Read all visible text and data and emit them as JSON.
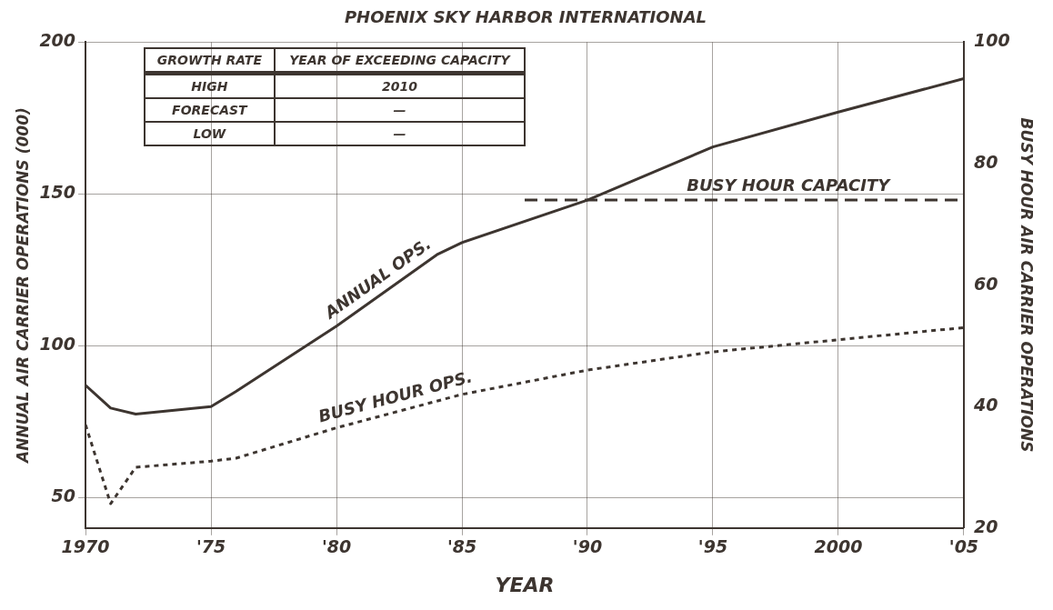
{
  "chart_data": {
    "type": "line",
    "title": "PHOENIX SKY HARBOR INTERNATIONAL",
    "xlabel": "YEAR",
    "ylabel": "ANNUAL AIR CARRIER OPERATIONS (000)",
    "y2label": "BUSY HOUR AIR CARRIER OPERATIONS",
    "xlim": [
      1970,
      2005
    ],
    "xticks": [
      1970,
      {
        "value": 1975,
        "label": "'75"
      },
      {
        "value": 1980,
        "label": "'80"
      },
      {
        "value": 1985,
        "label": "'85"
      },
      {
        "value": 1990,
        "label": "'90"
      },
      {
        "value": 1995,
        "label": "'95"
      },
      2000,
      {
        "value": 2005,
        "label": "'05"
      }
    ],
    "ylim": [
      40,
      200
    ],
    "yticks": [
      50,
      100,
      150,
      200
    ],
    "y2lim": [
      20,
      100
    ],
    "y2ticks": [
      20,
      40,
      60,
      80,
      100
    ],
    "grid": true,
    "legend": false,
    "marker": "none",
    "series": [
      {
        "name": "ANNUAL OPS.",
        "color": "#3d3530",
        "line_style": "solid",
        "x": [
          1970,
          1971,
          1972,
          1975,
          1976,
          1980,
          1984,
          1985,
          1990,
          1995,
          2000,
          2005
        ],
        "values": [
          87,
          79.5,
          77.5,
          80,
          85,
          106.5,
          130,
          134,
          148,
          165.5,
          177,
          188
        ]
      },
      {
        "name": "BUSY HOUR OPS.",
        "color": "#3d3530",
        "line_style": "dotted",
        "axis": "y2",
        "x": [
          1970,
          1971,
          1972,
          1975,
          1976,
          1980,
          1985,
          1990,
          1995,
          2000,
          2005
        ],
        "values": [
          37,
          24,
          30,
          31,
          31.5,
          36.5,
          42,
          46,
          49,
          51,
          53
        ]
      },
      {
        "name": "BUSY HOUR CAPACITY",
        "color": "#3d3530",
        "line_style": "dashed",
        "axis": "y2",
        "x": [
          1987.5,
          2005
        ],
        "values": [
          74,
          74
        ]
      }
    ],
    "annotations": [
      "GROWTH RATE",
      "YEAR OF EXCEEDING CAPACITY",
      "HIGH",
      "2010",
      "FORECAST",
      "—",
      "LOW",
      "—"
    ]
  }
}
